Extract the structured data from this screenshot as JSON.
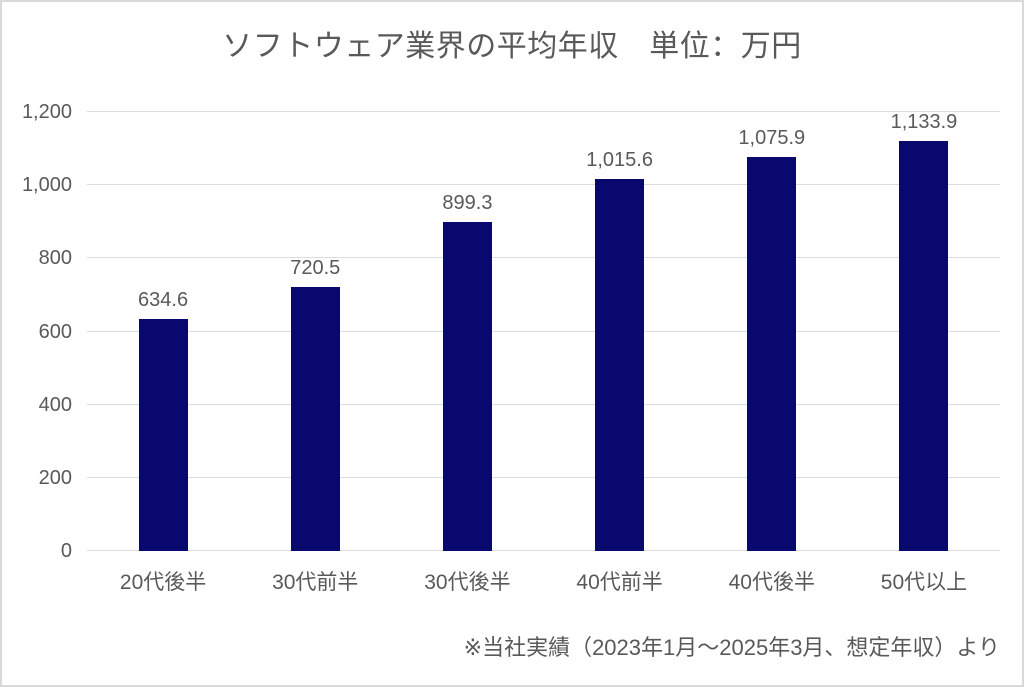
{
  "chart_data": {
    "type": "bar",
    "title": "ソフトウェア業界の平均年収　単位：万円",
    "categories": [
      "20代後半",
      "30代前半",
      "30代後半",
      "40代前半",
      "40代後半",
      "50代以上"
    ],
    "values": [
      634.6,
      720.5,
      899.3,
      1015.6,
      1075.9,
      1133.9
    ],
    "value_labels": [
      "634.6",
      "720.5",
      "899.3",
      "1,015.6",
      "1,075.9",
      "1,133.9"
    ],
    "xlabel": "",
    "ylabel": "",
    "ylim": [
      0,
      1200
    ],
    "yticks": [
      0,
      200,
      400,
      600,
      800,
      1000,
      1200
    ],
    "ytick_labels": [
      "0",
      "200",
      "400",
      "600",
      "800",
      "1,000",
      "1,200"
    ],
    "grid": true,
    "legend": false,
    "footnote": "※当社実績（2023年1月～2025年3月、想定年収）より"
  },
  "colors": {
    "bar": "#08086e",
    "text": "#595959",
    "gridline": "#dcdcdc",
    "frame_border": "#d9d9d9",
    "background": "#ffffff"
  }
}
